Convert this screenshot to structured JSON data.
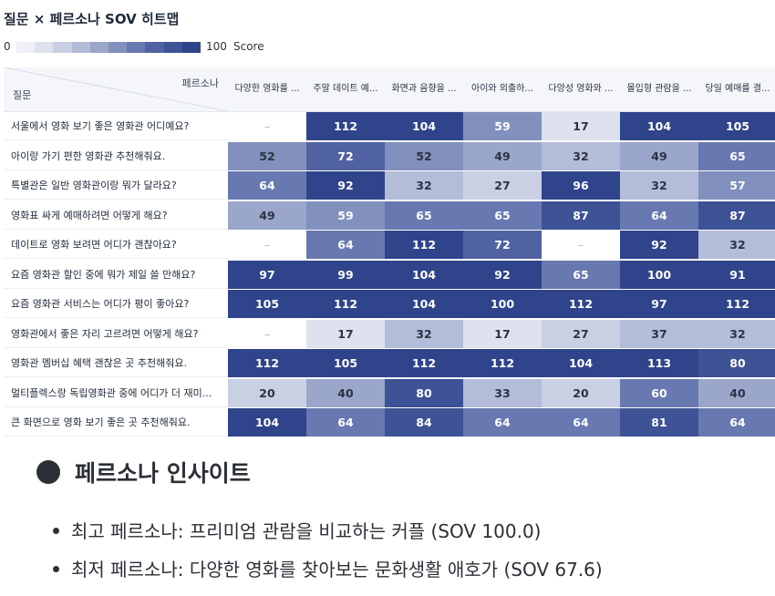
{
  "title": "질문 × 페르소나 SOV 히트맵",
  "legend": {
    "min": "0",
    "max": "100",
    "label": "Score"
  },
  "colors": {
    "scale": [
      "#eef0f6",
      "#dde2ee",
      "#c9d0e4",
      "#b3bcd8",
      "#9aa6ca",
      "#8190bd",
      "#6878b0",
      "#5062a2",
      "#3e5296",
      "#2f448a"
    ],
    "header_bg": "#f5f6fa"
  },
  "header": {
    "persona_label": "페르소나",
    "question_label": "질문",
    "columns": [
      "다양한 영화를 ...",
      "주말 데이트 예...",
      "화면과 음향을 ...",
      "아이와 외출하...",
      "다양성 영화와 ...",
      "몰입형 관람을 ...",
      "당일 예매를 결..."
    ]
  },
  "rows": [
    {
      "question": "서울에서 영화 보기 좋은 영화관 어디예요?",
      "values": [
        "–",
        "112",
        "104",
        "59",
        "17",
        "104",
        "105"
      ]
    },
    {
      "question": "아이랑 가기 편한 영화관 추천해줘요.",
      "values": [
        "52",
        "72",
        "52",
        "49",
        "32",
        "49",
        "65"
      ]
    },
    {
      "question": "특별관은 일반 영화관이랑 뭐가 달라요?",
      "values": [
        "64",
        "92",
        "32",
        "27",
        "96",
        "32",
        "57"
      ]
    },
    {
      "question": "영화표 싸게 예매하려면 어떻게 해요?",
      "values": [
        "49",
        "59",
        "65",
        "65",
        "87",
        "64",
        "87"
      ]
    },
    {
      "question": "데이트로 영화 보려면 어디가 괜찮아요?",
      "values": [
        "–",
        "64",
        "112",
        "72",
        "–",
        "92",
        "32"
      ]
    },
    {
      "question": "요즘 영화관 할인 중에 뭐가 제일 쓸 만해요?",
      "values": [
        "97",
        "99",
        "104",
        "92",
        "65",
        "100",
        "91"
      ]
    },
    {
      "question": "요즘 영화관 서비스는 어디가 평이 좋아요?",
      "values": [
        "105",
        "112",
        "104",
        "100",
        "112",
        "97",
        "112"
      ]
    },
    {
      "question": "영화관에서 좋은 자리 고르려면 어떻게 해요?",
      "values": [
        "–",
        "17",
        "32",
        "17",
        "27",
        "37",
        "32"
      ]
    },
    {
      "question": "영화관 멤버십 혜택 괜찮은 곳 추천해줘요.",
      "values": [
        "112",
        "105",
        "112",
        "112",
        "104",
        "113",
        "80"
      ]
    },
    {
      "question": "멀티플렉스랑 독립영화관 중에 어디가 더 재미...",
      "values": [
        "20",
        "40",
        "80",
        "33",
        "20",
        "60",
        "40"
      ]
    },
    {
      "question": "큰 화면으로 영화 보기 좋은 곳 추천해줘요.",
      "values": [
        "104",
        "64",
        "84",
        "64",
        "64",
        "81",
        "64"
      ]
    }
  ],
  "insights": {
    "title": "페르소나 인사이트",
    "items": [
      "최고 페르소나: 프리미엄 관람을 비교하는 커플 (SOV 100.0)",
      "최저 페르소나: 다양한 영화를 찾아보는 문화생활 애호가 (SOV 67.6)"
    ]
  }
}
